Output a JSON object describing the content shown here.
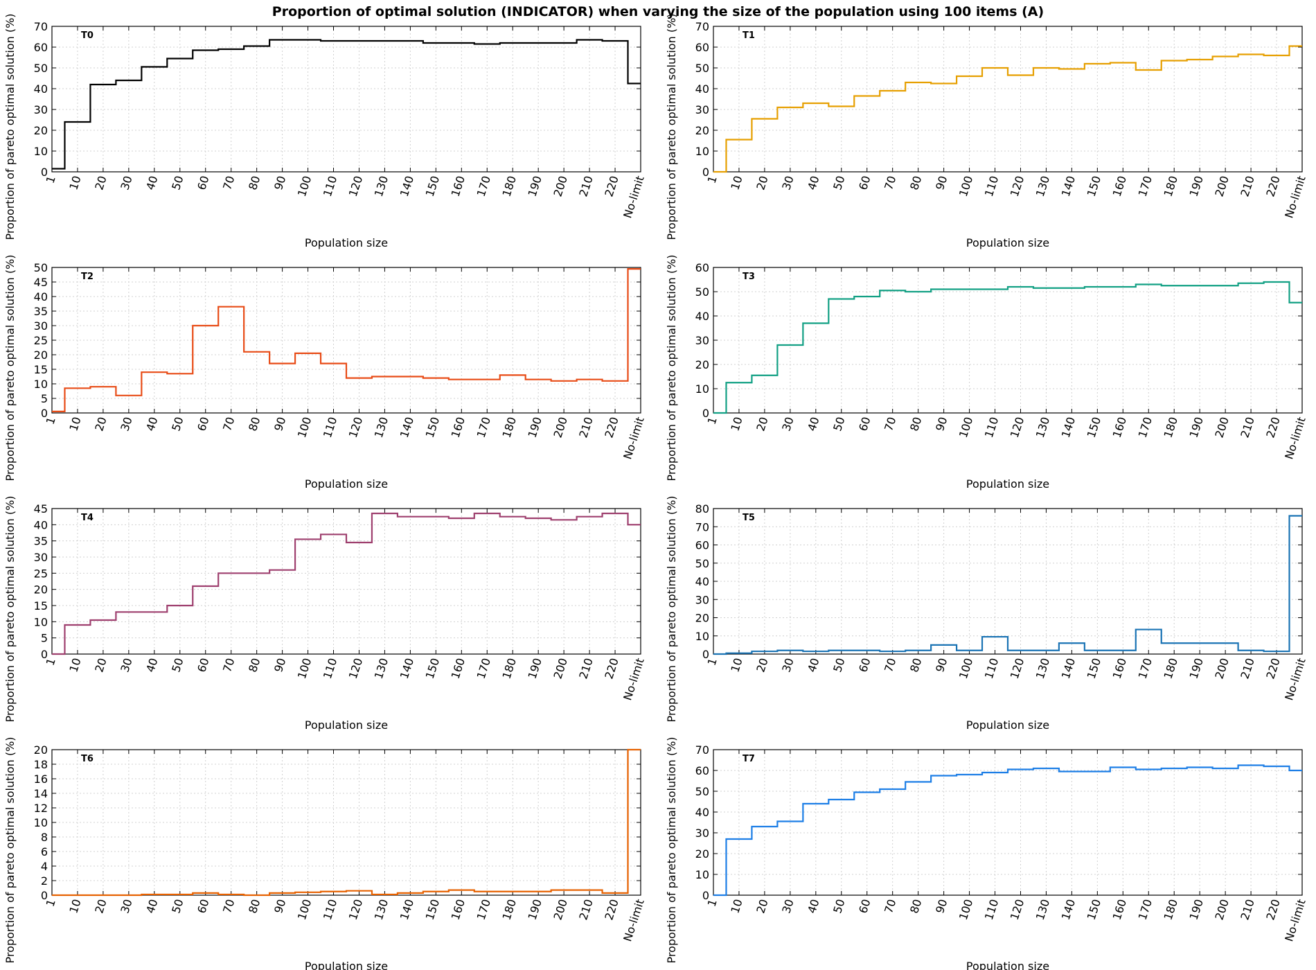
{
  "title": "Proportion of optimal solution (INDICATOR) when varying the size of the population using 100 items (A)",
  "x_categories": [
    "1",
    "10",
    "20",
    "30",
    "40",
    "50",
    "60",
    "70",
    "80",
    "90",
    "100",
    "110",
    "120",
    "130",
    "140",
    "150",
    "160",
    "170",
    "180",
    "190",
    "200",
    "210",
    "220",
    "No-limit"
  ],
  "chart_data": [
    {
      "type": "line",
      "step": true,
      "panel_label": "T0",
      "xlabel": "Population size",
      "ylabel": "Proportion of pareto optimal solution (%)",
      "ylim": [
        0,
        70
      ],
      "yticks": [
        0,
        10,
        20,
        30,
        40,
        50,
        60,
        70
      ],
      "grid": true,
      "color": "#000000",
      "values": [
        1.5,
        24,
        42,
        44,
        50.5,
        54.5,
        58.5,
        59,
        60.5,
        63.5,
        63.5,
        63,
        63,
        63,
        63,
        62,
        62,
        61.5,
        62,
        62,
        62,
        63.5,
        63,
        42.5
      ]
    },
    {
      "type": "line",
      "step": true,
      "panel_label": "T1",
      "xlabel": "Population size",
      "ylabel": "Proportion of pareto optimal solution (%)",
      "ylim": [
        0,
        70
      ],
      "yticks": [
        0,
        10,
        20,
        30,
        40,
        50,
        60,
        70
      ],
      "grid": true,
      "color": "#e69f00",
      "values": [
        0,
        15.5,
        25.5,
        31,
        33,
        31.5,
        36.5,
        39,
        43,
        42.5,
        46,
        50,
        46.5,
        50,
        49.5,
        52,
        52.5,
        49,
        53.5,
        54,
        55.5,
        56.5,
        56,
        60.5
      ]
    },
    {
      "type": "line",
      "step": true,
      "panel_label": "T2",
      "xlabel": "Population size",
      "ylabel": "Proportion of pareto optimal solution (%)",
      "ylim": [
        0,
        50
      ],
      "yticks": [
        0,
        5,
        10,
        15,
        20,
        25,
        30,
        35,
        40,
        45,
        50
      ],
      "grid": true,
      "color": "#e84b16",
      "values": [
        0.5,
        8.5,
        9,
        6,
        14,
        13.5,
        30,
        36.5,
        21,
        17,
        20.5,
        17,
        12,
        12.5,
        12.5,
        12,
        11.5,
        11.5,
        13,
        11.5,
        11,
        11.5,
        11,
        49.5
      ]
    },
    {
      "type": "line",
      "step": true,
      "panel_label": "T3",
      "xlabel": "Population size",
      "ylabel": "Proportion of pareto optimal solution (%)",
      "ylim": [
        0,
        60
      ],
      "yticks": [
        0,
        10,
        20,
        30,
        40,
        50,
        60
      ],
      "grid": true,
      "color": "#12a084",
      "values": [
        0,
        12.5,
        15.5,
        28,
        37,
        47,
        48,
        50.5,
        50,
        51,
        51,
        51,
        52,
        51.5,
        51.5,
        52,
        52,
        53,
        52.5,
        52.5,
        52.5,
        53.5,
        54,
        45.5
      ]
    },
    {
      "type": "line",
      "step": true,
      "panel_label": "T4",
      "xlabel": "Population size",
      "ylabel": "Proportion of pareto optimal solution (%)",
      "ylim": [
        0,
        45
      ],
      "yticks": [
        0,
        5,
        10,
        15,
        20,
        25,
        30,
        35,
        40,
        45
      ],
      "grid": true,
      "color": "#9e3f6e",
      "values": [
        0,
        9,
        10.5,
        13,
        13,
        15,
        21,
        25,
        25,
        26,
        35.5,
        37,
        34.5,
        43.5,
        42.5,
        42.5,
        42,
        43.5,
        42.5,
        42,
        41.5,
        42.5,
        43.5,
        40
      ]
    },
    {
      "type": "line",
      "step": true,
      "panel_label": "T5",
      "xlabel": "Population size",
      "ylabel": "Proportion of pareto optimal solution (%)",
      "ylim": [
        0,
        80
      ],
      "yticks": [
        0,
        10,
        20,
        30,
        40,
        50,
        60,
        70,
        80
      ],
      "grid": true,
      "color": "#1a73b4",
      "values": [
        0,
        0.5,
        1.5,
        2,
        1.5,
        2,
        2,
        1.5,
        2,
        5,
        2,
        9.5,
        2,
        2,
        6,
        2,
        2,
        13.5,
        6,
        6,
        6,
        2,
        1.5,
        76
      ]
    },
    {
      "type": "line",
      "step": true,
      "panel_label": "T6",
      "xlabel": "Population size",
      "ylabel": "Proportion of pareto optimal solution (%)",
      "ylim": [
        0,
        20
      ],
      "yticks": [
        0,
        2,
        4,
        6,
        8,
        10,
        12,
        14,
        16,
        18,
        20
      ],
      "grid": true,
      "color": "#e66100",
      "values": [
        0,
        0,
        0,
        0,
        0.1,
        0.1,
        0.3,
        0.1,
        0,
        0.3,
        0.4,
        0.5,
        0.6,
        0.1,
        0.3,
        0.5,
        0.7,
        0.5,
        0.5,
        0.5,
        0.7,
        0.7,
        0.3,
        20
      ]
    },
    {
      "type": "line",
      "step": true,
      "panel_label": "T7",
      "xlabel": "Population size",
      "ylabel": "Proportion of pareto optimal solution (%)",
      "ylim": [
        0,
        70
      ],
      "yticks": [
        0,
        10,
        20,
        30,
        40,
        50,
        60,
        70
      ],
      "grid": true,
      "color": "#1c7ee6",
      "values": [
        0,
        27,
        33,
        35.5,
        44,
        46,
        49.5,
        51,
        54.5,
        57.5,
        58,
        59,
        60.5,
        61,
        59.5,
        59.5,
        61.5,
        60.5,
        61,
        61.5,
        61,
        62.5,
        62,
        60
      ]
    }
  ]
}
